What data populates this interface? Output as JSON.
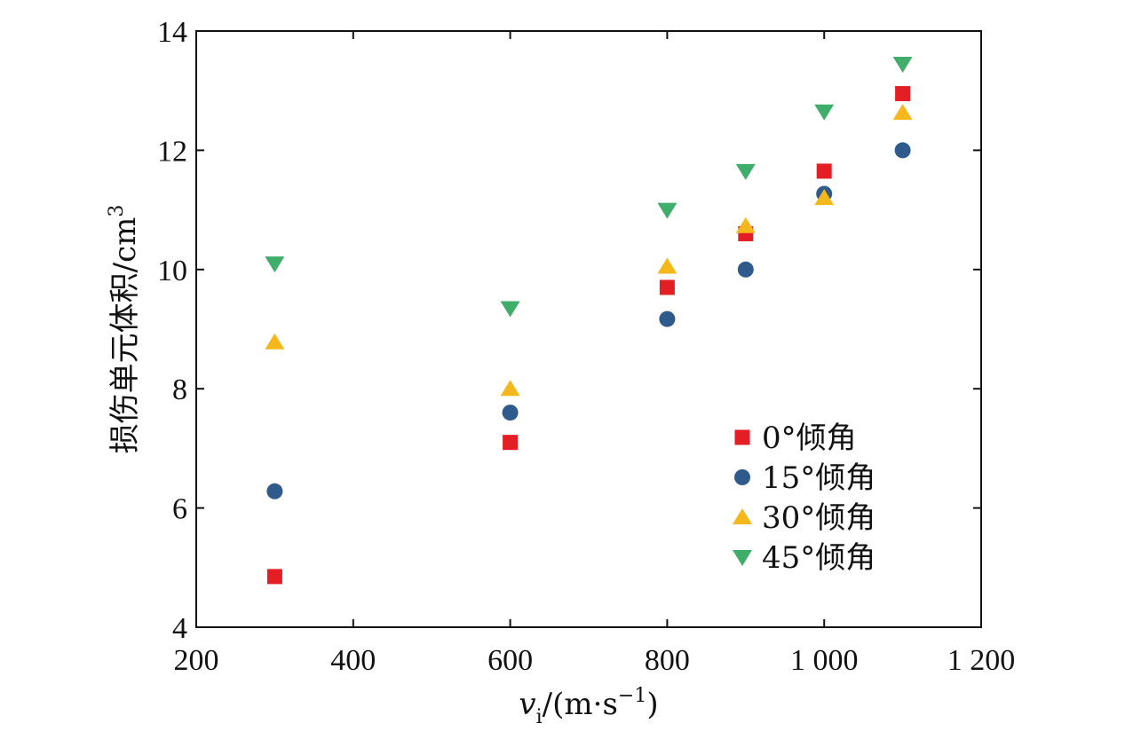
{
  "chart_data": {
    "type": "scatter",
    "title": "",
    "xlabel_main": "v",
    "xlabel_sub": "i",
    "xlabel_unit": "/(m·s",
    "xlabel_exp": "−1",
    "xlabel_close": ")",
    "ylabel": "损伤单元体积/cm",
    "ylabel_exp": "3",
    "xlim": [
      200,
      1200
    ],
    "ylim": [
      4,
      14
    ],
    "x_ticks": [
      200,
      400,
      600,
      800,
      1000,
      1200
    ],
    "x_tick_labels": [
      "200",
      "400",
      "600",
      "800",
      "1 000",
      "1 200"
    ],
    "y_ticks": [
      4,
      6,
      8,
      10,
      12,
      14
    ],
    "y_tick_labels": [
      "4",
      "6",
      "8",
      "10",
      "12",
      "14"
    ],
    "grid": false,
    "legend_position": "lower-right",
    "series": [
      {
        "name": "0°倾角",
        "marker": "square",
        "color": "#e31e24",
        "points": [
          [
            300,
            4.85
          ],
          [
            600,
            7.1
          ],
          [
            800,
            9.7
          ],
          [
            900,
            10.6
          ],
          [
            1000,
            11.65
          ],
          [
            1100,
            12.95
          ]
        ]
      },
      {
        "name": "15°倾角",
        "marker": "circle",
        "color": "#2f5b8c",
        "points": [
          [
            300,
            6.28
          ],
          [
            600,
            7.6
          ],
          [
            800,
            9.17
          ],
          [
            900,
            10.0
          ],
          [
            1000,
            11.27
          ],
          [
            1100,
            12.0
          ]
        ]
      },
      {
        "name": "30°倾角",
        "marker": "triangle-up",
        "color": "#f4b81c",
        "points": [
          [
            300,
            8.78
          ],
          [
            600,
            8.0
          ],
          [
            800,
            10.05
          ],
          [
            900,
            10.73
          ],
          [
            1000,
            11.2
          ],
          [
            1100,
            12.63
          ]
        ]
      },
      {
        "name": "45°倾角",
        "marker": "triangle-down",
        "color": "#3fae6b",
        "points": [
          [
            300,
            10.1
          ],
          [
            600,
            9.35
          ],
          [
            800,
            11.0
          ],
          [
            900,
            11.65
          ],
          [
            1000,
            12.65
          ],
          [
            1100,
            13.45
          ]
        ]
      }
    ]
  }
}
